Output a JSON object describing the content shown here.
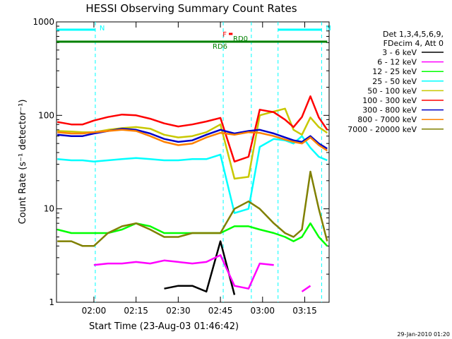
{
  "chart_data": {
    "type": "line",
    "title": "HESSI Observing Summary Count Rates",
    "xlabel": "Start Time (23-Aug-03 01:46:42)",
    "ylabel": "Count Rate (s⁻¹ detector⁻¹)",
    "yscale": "log",
    "ylim": [
      1,
      1000
    ],
    "xlim": [
      "01:46:42",
      "03:23:40"
    ],
    "x_ticks": [
      "02:00",
      "02:15",
      "02:30",
      "02:45",
      "03:00",
      "03:15"
    ],
    "y_ticks": [
      "1",
      "10",
      "100",
      "1000"
    ],
    "legend_header": [
      "Det 1,3,4,5,6,9,",
      "FDecim 4, Att 0"
    ],
    "x": [
      "01:47",
      "01:52",
      "01:56",
      "02:00",
      "02:05",
      "02:10",
      "02:15",
      "02:20",
      "02:25",
      "02:30",
      "02:35",
      "02:40",
      "02:45",
      "02:50",
      "02:55",
      "02:59",
      "03:04",
      "03:08",
      "03:11",
      "03:14",
      "03:17",
      "03:20",
      "03:23"
    ],
    "series": [
      {
        "name": "3 - 6 keV",
        "color": "#000000",
        "values": [
          null,
          null,
          null,
          null,
          null,
          null,
          null,
          null,
          1.4,
          1.5,
          1.5,
          1.3,
          4.5,
          1.2,
          null,
          null,
          null,
          null,
          null,
          null,
          null,
          null,
          null
        ]
      },
      {
        "name": "6 - 12 keV",
        "color": "#ff00ff",
        "values": [
          null,
          null,
          null,
          2.5,
          2.6,
          2.6,
          2.7,
          2.6,
          2.8,
          2.7,
          2.6,
          2.7,
          3.2,
          1.5,
          1.4,
          2.6,
          2.5,
          null,
          null,
          1.3,
          1.5,
          null,
          null
        ]
      },
      {
        "name": "12 - 25 keV",
        "color": "#00ff00",
        "values": [
          6,
          5.5,
          5.5,
          5.5,
          5.5,
          6,
          7,
          6.5,
          5.5,
          5.5,
          5.5,
          5.5,
          5.5,
          6.5,
          6.5,
          6,
          5.5,
          5,
          4.5,
          5,
          7,
          5,
          4
        ]
      },
      {
        "name": "25 - 50 keV",
        "color": "#00ffff",
        "values": [
          34,
          33,
          33,
          32,
          33,
          34,
          35,
          34,
          33,
          33,
          34,
          34,
          38,
          9,
          10,
          46,
          56,
          54,
          50,
          60,
          45,
          36,
          33
        ]
      },
      {
        "name": "50 - 100 keV",
        "color": "#c8c800",
        "values": [
          68,
          67,
          66,
          66,
          70,
          73,
          75,
          72,
          62,
          58,
          60,
          66,
          80,
          21,
          22,
          100,
          110,
          118,
          70,
          62,
          95,
          75,
          65
        ]
      },
      {
        "name": "100 - 300 keV",
        "color": "#ff0000",
        "values": [
          85,
          80,
          80,
          88,
          96,
          102,
          100,
          92,
          82,
          76,
          80,
          86,
          94,
          32,
          36,
          115,
          108,
          90,
          75,
          96,
          160,
          95,
          70
        ]
      },
      {
        "name": "300 - 800 keV",
        "color": "#0000c8",
        "values": [
          62,
          60,
          60,
          64,
          68,
          72,
          70,
          64,
          56,
          52,
          54,
          62,
          70,
          64,
          68,
          70,
          64,
          58,
          54,
          52,
          60,
          50,
          44
        ]
      },
      {
        "name": "800 - 7000 keV",
        "color": "#ff8000",
        "values": [
          66,
          64,
          64,
          66,
          68,
          70,
          68,
          60,
          52,
          48,
          50,
          58,
          65,
          62,
          66,
          65,
          60,
          55,
          52,
          50,
          58,
          48,
          42
        ]
      },
      {
        "name": "7000 - 20000 keV",
        "color": "#808000",
        "values": [
          4.5,
          4.5,
          4,
          4,
          5.5,
          6.5,
          7,
          6,
          5,
          5,
          5.5,
          5.5,
          5.5,
          10,
          12,
          10,
          7,
          5.5,
          5,
          6,
          25,
          10,
          4.5
        ]
      }
    ],
    "states": [
      {
        "label": "N",
        "color": "#00ffff",
        "from": "01:46:42",
        "to": "02:00:30"
      },
      {
        "label": "N",
        "color": "#00ffff",
        "from": "03:05:30",
        "to": "03:21:00"
      },
      {
        "label": "RD6",
        "color": "#008000",
        "from": "01:46:42",
        "to": "02:48:00"
      },
      {
        "label": "RD0",
        "color": "#008000",
        "from": "02:48:00",
        "to": "02:56:00"
      },
      {
        "label": "",
        "color": "#008000",
        "from": "02:56:00",
        "to": "03:23:00"
      },
      {
        "label": "F",
        "color": "#ff0000",
        "from": "02:48:00",
        "to": "02:49:20"
      }
    ],
    "state_markers": [
      "02:00:30",
      "02:46:00",
      "02:56:00",
      "03:05:30",
      "03:21:00"
    ],
    "grid": false,
    "legend_position": "right"
  },
  "footer": "29-Jan-2010 01:20"
}
